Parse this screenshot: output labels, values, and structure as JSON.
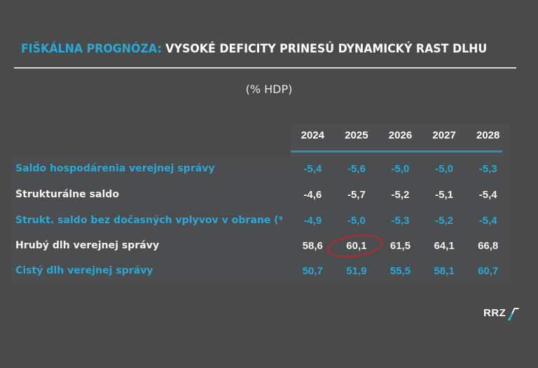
{
  "header": {
    "title_accent": "FIŠKÁLNA PROGNÓZA:",
    "title_rest": " VYSOKÉ DEFICITY PRINESÚ DYNAMICKÝ RAST DLHU",
    "subtitle": "(% HDP)"
  },
  "table": {
    "years": [
      "2024",
      "2025",
      "2026",
      "2027",
      "2028"
    ],
    "rows": [
      {
        "label": "Saldo hospodárenia verejnej správy",
        "values": [
          "-5,4",
          "-5,6",
          "-5,0",
          "-5,0",
          "-5,3"
        ]
      },
      {
        "label": "Štrukturálne saldo",
        "values": [
          "-4,6",
          "-5,7",
          "-5,2",
          "-5,1",
          "-5,4"
        ]
      },
      {
        "label": "Štrukt. saldo bez dočasných vplyvov v obrane (*)",
        "values": [
          "-4,9",
          "-5,0",
          "-5,3",
          "-5,2",
          "-5,4"
        ]
      },
      {
        "label": "Hrubý dlh verejnej správy",
        "values": [
          "58,6",
          "60,1",
          "61,5",
          "64,1",
          "66,8"
        ]
      },
      {
        "label": "Čistý dlh verejnej správy",
        "values": [
          "50,7",
          "51,9",
          "55,5",
          "58,1",
          "60,7"
        ]
      }
    ]
  },
  "logo": {
    "text": "RRZ"
  },
  "colors": {
    "accent": "#2aa8d6",
    "highlight_circle": "#c1272d",
    "background": "#4a4a4b"
  }
}
